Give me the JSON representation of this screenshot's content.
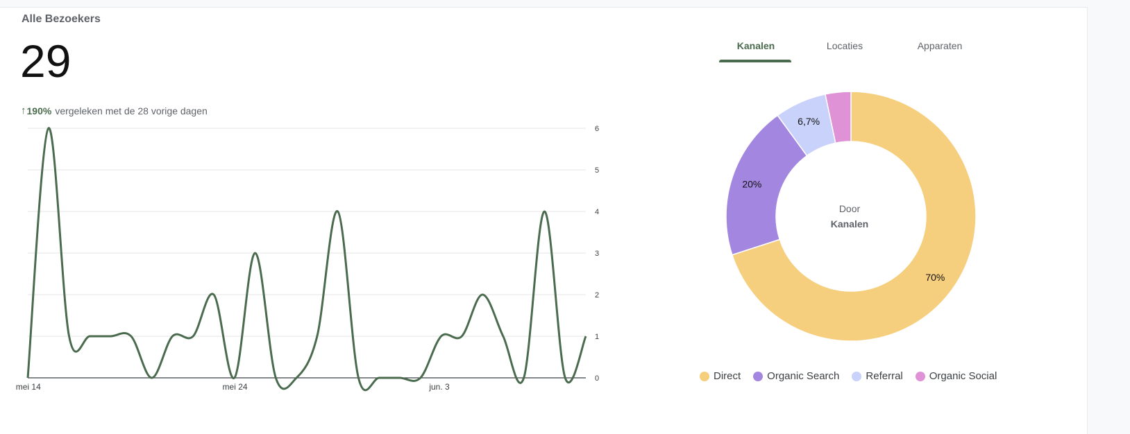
{
  "card": {
    "title": "Alle Bezoekers",
    "total": "29",
    "change_arrow": "↑",
    "change_pct": "190%",
    "change_text": "vergeleken met de 28 vorige dagen"
  },
  "chart_data": [
    {
      "type": "line",
      "series": [
        {
          "values": [
            0,
            6,
            1,
            1,
            1,
            1,
            0,
            1,
            1,
            2,
            0,
            3,
            0,
            0,
            1,
            4,
            0,
            0,
            0,
            0,
            1,
            1,
            2,
            1,
            0,
            4,
            0,
            1
          ],
          "color": "#4a6b4e"
        }
      ],
      "x_tick_labels": [
        "mei 14",
        "mei 24",
        "jun. 3"
      ],
      "y_ticks": [
        0,
        1,
        2,
        3,
        4,
        5,
        6
      ],
      "ylim": [
        0,
        6
      ],
      "y_axis_side": "right",
      "grid": true
    },
    {
      "type": "pie",
      "donut": true,
      "center_label_1": "Door",
      "center_label_2": "Kanalen",
      "slices": [
        {
          "name": "Direct",
          "value": 70,
          "label": "70%",
          "color": "#f6cf7e"
        },
        {
          "name": "Organic Search",
          "value": 20,
          "label": "20%",
          "color": "#a386e0"
        },
        {
          "name": "Referral",
          "value": 6.7,
          "label": "6,7%",
          "color": "#c9d2fa"
        },
        {
          "name": "Organic Social",
          "value": 3.3,
          "label": "",
          "color": "#e092d6"
        }
      ]
    }
  ],
  "tabs": [
    {
      "label": "Kanalen",
      "active": true
    },
    {
      "label": "Locaties",
      "active": false
    },
    {
      "label": "Apparaten",
      "active": false
    }
  ]
}
